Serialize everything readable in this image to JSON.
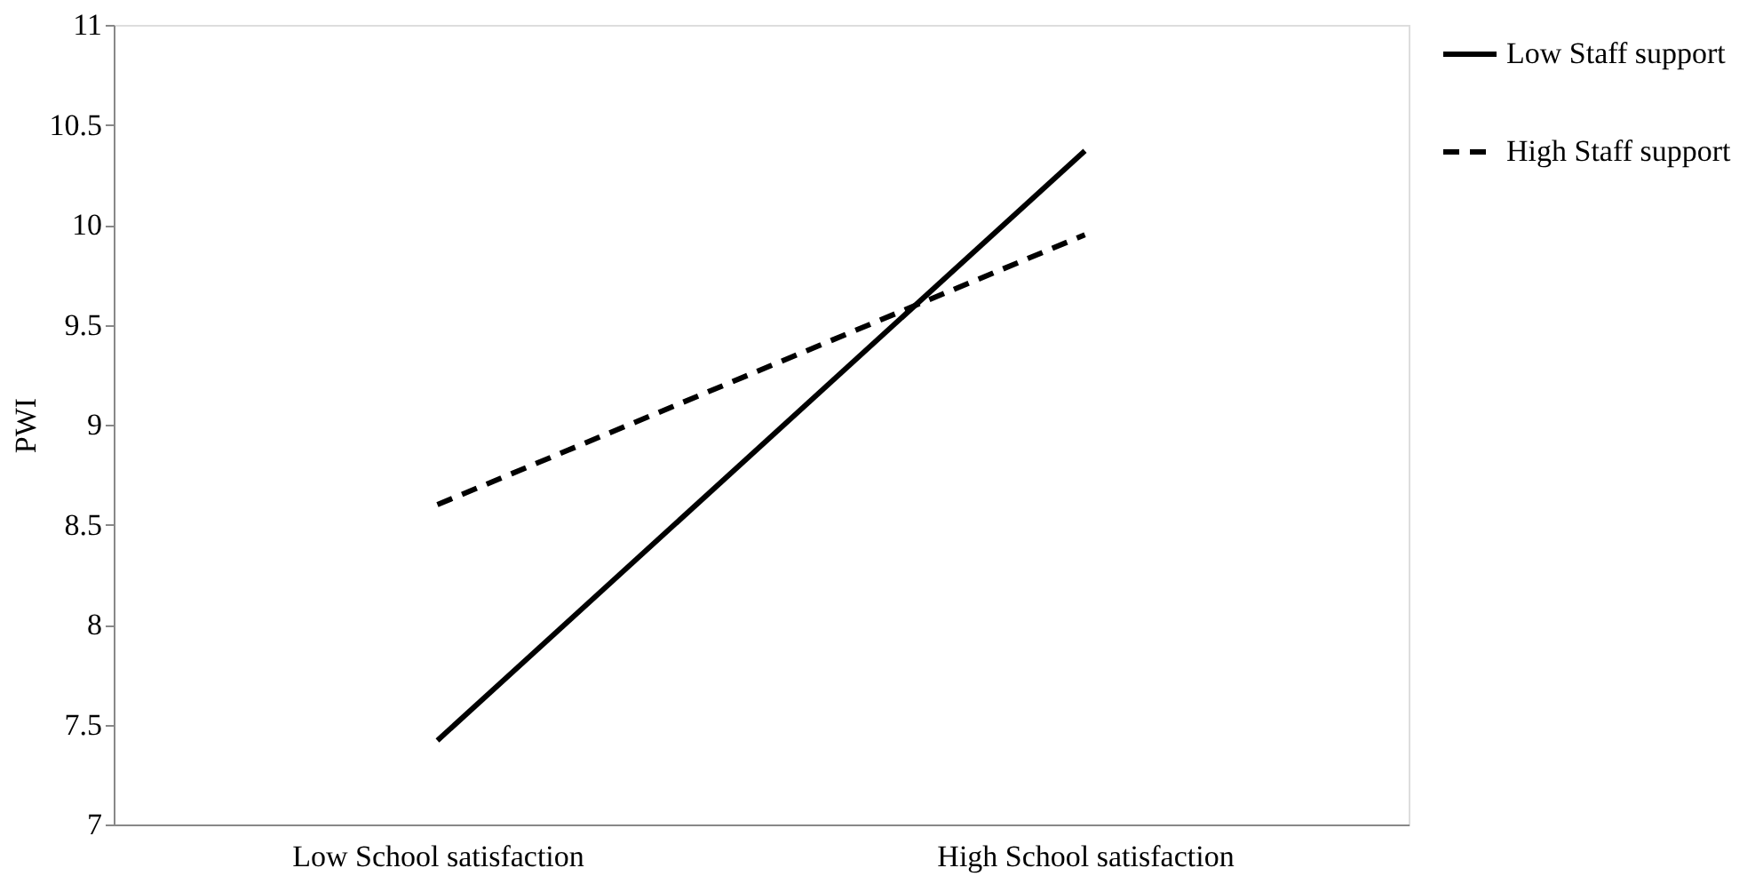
{
  "chart_data": {
    "type": "line",
    "ylabel": "PWI",
    "categories": [
      "Low School satisfaction",
      "High School satisfaction"
    ],
    "series": [
      {
        "name": "Low Staff support",
        "color": "#000000",
        "line_style": "solid",
        "values": [
          7.42,
          10.37
        ]
      },
      {
        "name": "High Staff support",
        "color": "#000000",
        "line_style": "dashed",
        "values": [
          8.6,
          9.95
        ]
      }
    ],
    "ylim": [
      7,
      11
    ],
    "yticks": [
      7,
      7.5,
      8,
      8.5,
      9,
      9.5,
      10,
      10.5,
      11
    ],
    "grid": false,
    "legend": "right",
    "marker": "none"
  }
}
